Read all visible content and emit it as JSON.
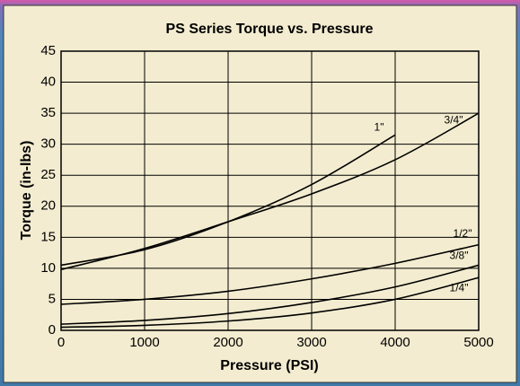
{
  "chart_data": {
    "type": "line",
    "title": "PS Series Torque vs. Pressure",
    "x_label": "Pressure (PSI)",
    "y_label": "Torque (in-lbs)",
    "xlim": [
      0,
      5000
    ],
    "xticks": [
      0,
      1000,
      2000,
      3000,
      4000,
      5000
    ],
    "ylim": [
      0,
      45
    ],
    "yticks": [
      0,
      5,
      10,
      15,
      20,
      25,
      30,
      35,
      40,
      45
    ],
    "grid": true,
    "series": [
      {
        "name": "1\"",
        "color": "#000000",
        "x": [
          0,
          1000,
          2000,
          3000,
          4000
        ],
        "values": [
          10.5,
          13,
          17.5,
          23.5,
          31.5
        ]
      },
      {
        "name": "3/4\"",
        "color": "#000000",
        "x": [
          0,
          1000,
          2000,
          3000,
          4000,
          5000
        ],
        "values": [
          9.8,
          13.2,
          17.5,
          22,
          27.5,
          35
        ]
      },
      {
        "name": "1/2\"",
        "color": "#000000",
        "x": [
          0,
          1000,
          2000,
          3000,
          4000,
          5000
        ],
        "values": [
          4.2,
          5,
          6.3,
          8.3,
          10.8,
          13.8
        ]
      },
      {
        "name": "3/8\"",
        "color": "#000000",
        "x": [
          0,
          1000,
          2000,
          3000,
          4000,
          5000
        ],
        "values": [
          1,
          1.6,
          2.7,
          4.5,
          7,
          10.5
        ]
      },
      {
        "name": "1/4\"",
        "color": "#000000",
        "x": [
          0,
          1000,
          2000,
          3000,
          4000,
          5000
        ],
        "values": [
          0.5,
          0.8,
          1.5,
          2.8,
          5,
          8.5
        ]
      }
    ]
  }
}
